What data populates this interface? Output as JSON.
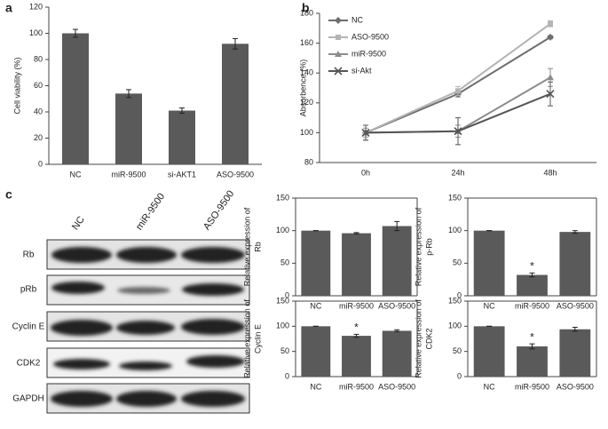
{
  "chart_data": [
    {
      "type": "bar",
      "panel": "a",
      "ylabel": [
        "Cell viability (%)"
      ],
      "categories": [
        "NC",
        "miR-9500",
        "si-AKT1",
        "ASO-9500"
      ],
      "values": [
        100,
        54,
        41,
        92
      ],
      "errors": [
        3,
        3,
        2,
        4
      ],
      "color": "#5a5a5a",
      "ylim": [
        0,
        120
      ],
      "yticks": [
        0,
        20,
        40,
        60,
        80,
        100,
        120
      ]
    },
    {
      "type": "line",
      "panel": "b",
      "ylabel": [
        "Absorbence (%)"
      ],
      "categories": [
        "0h",
        "24h",
        "48h"
      ],
      "series": [
        {
          "name": "NC",
          "color": "#6e6e6e",
          "marker": "diamond",
          "values": [
            100,
            126,
            164
          ],
          "errors": [
            3,
            2,
            1
          ]
        },
        {
          "name": "ASO-9500",
          "color": "#b4b4b4",
          "marker": "square",
          "values": [
            100,
            128,
            173
          ],
          "errors": [
            3,
            3,
            2
          ]
        },
        {
          "name": "miR-9500",
          "color": "#8c8c8c",
          "marker": "triangle",
          "values": [
            100,
            101,
            137
          ],
          "errors": [
            5,
            4,
            6
          ]
        },
        {
          "name": "si-Akt",
          "color": "#555555",
          "marker": "x",
          "values": [
            100,
            101,
            126
          ],
          "errors": [
            5,
            9,
            8
          ]
        }
      ],
      "ylim": [
        80,
        180
      ],
      "yticks": [
        80,
        100,
        120,
        140,
        160,
        180
      ],
      "legend": "upper left"
    },
    {
      "type": "bar",
      "ylabel": [
        "Relative expression of",
        "Rb"
      ],
      "categories": [
        "NC",
        "miR-9500",
        "ASO-9500"
      ],
      "values": [
        100,
        96,
        107
      ],
      "errors": [
        0,
        1,
        7
      ],
      "color": "#5a5a5a",
      "ylim": [
        0,
        150
      ],
      "yticks": [
        0,
        50,
        100,
        150
      ]
    },
    {
      "type": "bar",
      "ylabel": [
        "Relative expression of",
        "p-Rb"
      ],
      "categories": [
        "NC",
        "miR-9500",
        "ASO-9500"
      ],
      "values": [
        100,
        32,
        98
      ],
      "errors": [
        0,
        3,
        2
      ],
      "significance": [
        null,
        "*",
        null
      ],
      "color": "#5a5a5a",
      "ylim": [
        0,
        150
      ],
      "yticks": [
        0,
        50,
        100,
        150
      ]
    },
    {
      "type": "bar",
      "ylabel": [
        "Relative expression of",
        "Cyclin E"
      ],
      "categories": [
        "NC",
        "miR-9500",
        "ASO-9500"
      ],
      "values": [
        100,
        81,
        91
      ],
      "errors": [
        0,
        3,
        2
      ],
      "significance": [
        null,
        "*",
        null
      ],
      "color": "#5a5a5a",
      "ylim": [
        0,
        150
      ],
      "yticks": [
        0,
        50,
        100,
        150
      ]
    },
    {
      "type": "bar",
      "ylabel": [
        "Relative expression of",
        "CDK2"
      ],
      "categories": [
        "NC",
        "miR-9500",
        "ASO-9500"
      ],
      "values": [
        100,
        60,
        94
      ],
      "errors": [
        0,
        5,
        4
      ],
      "significance": [
        null,
        "*",
        null
      ],
      "color": "#5a5a5a",
      "ylim": [
        0,
        150
      ],
      "yticks": [
        0,
        50,
        100,
        150
      ]
    }
  ],
  "blot": {
    "panel": "c",
    "lanes": [
      "NC",
      "miR-9500",
      "ASO-9500"
    ],
    "rows": [
      "Rb",
      "pRb",
      "Cyclin E",
      "CDK2",
      "GAPDH"
    ]
  }
}
